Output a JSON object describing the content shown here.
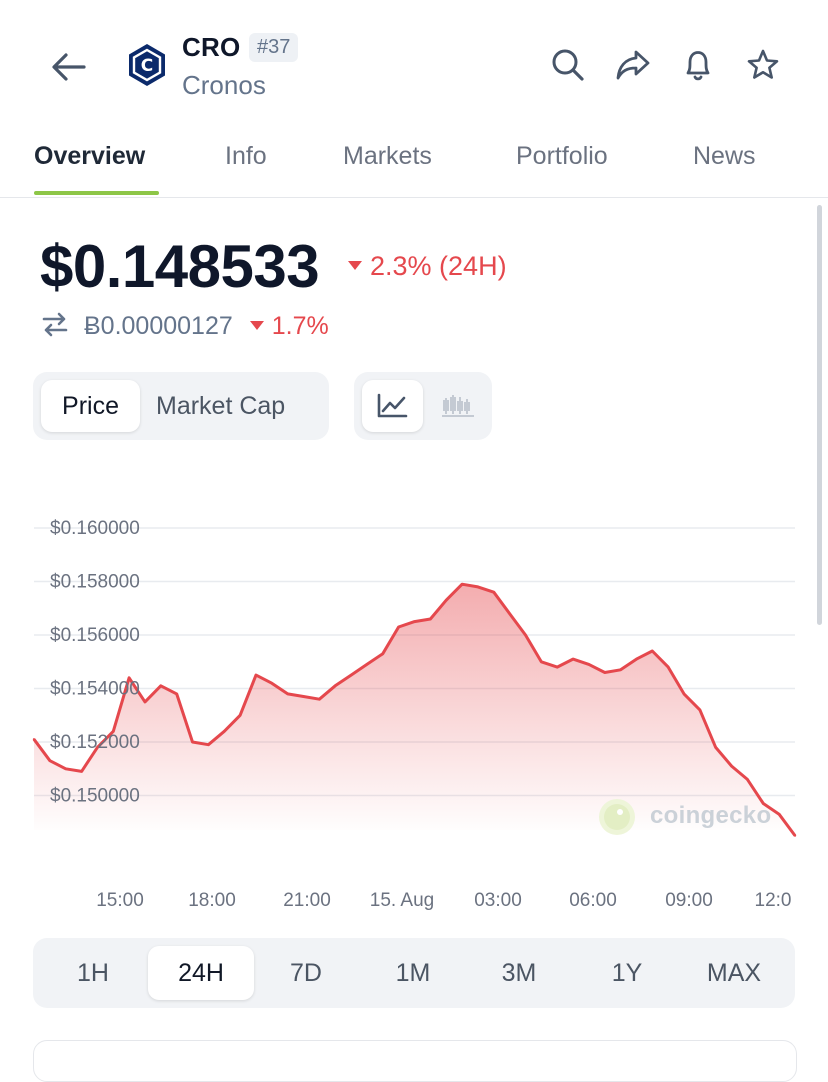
{
  "header": {
    "symbol": "CRO",
    "rank": "#37",
    "name": "Cronos",
    "logo_letter": "C"
  },
  "tabs": [
    {
      "label": "Overview",
      "active": true
    },
    {
      "label": "Info"
    },
    {
      "label": "Markets"
    },
    {
      "label": "Portfolio"
    },
    {
      "label": "News"
    }
  ],
  "price": {
    "value": "$0.148533",
    "change_24h": "2.3% (24H)",
    "btc_value": "Ƀ0.00000127",
    "btc_change": "1.7%",
    "change_color": "#e5484d"
  },
  "chart_toggle": {
    "price_label": "Price",
    "marketcap_label": "Market Cap"
  },
  "chart_data": {
    "type": "area",
    "y_ticks": [
      "$0.160000",
      "$0.158000",
      "$0.156000",
      "$0.154000",
      "$0.152000",
      "$0.150000"
    ],
    "x_ticks": [
      "15:00",
      "18:00",
      "21:00",
      "15. Aug",
      "03:00",
      "06:00",
      "09:00",
      "12:0"
    ],
    "x": [
      "12:15",
      "12:45",
      "13:15",
      "13:45",
      "14:15",
      "14:45",
      "15:15",
      "15:45",
      "16:15",
      "16:45",
      "17:15",
      "17:45",
      "18:15",
      "18:45",
      "19:15",
      "19:45",
      "20:15",
      "20:45",
      "21:15",
      "21:45",
      "22:15",
      "22:45",
      "23:15",
      "23:45",
      "00:15",
      "00:45",
      "01:15",
      "01:45",
      "02:15",
      "02:45",
      "03:15",
      "03:45",
      "04:15",
      "04:45",
      "05:15",
      "05:45",
      "06:15",
      "06:45",
      "07:15",
      "07:45",
      "08:15",
      "08:45",
      "09:15",
      "09:45",
      "10:15",
      "10:45",
      "11:15",
      "11:45",
      "12:15"
    ],
    "values": [
      0.1521,
      0.1513,
      0.151,
      0.1509,
      0.1518,
      0.1524,
      0.1544,
      0.1535,
      0.1541,
      0.1538,
      0.152,
      0.1519,
      0.1524,
      0.153,
      0.1545,
      0.1542,
      0.1538,
      0.1537,
      0.1536,
      0.1541,
      0.1545,
      0.1549,
      0.1553,
      0.1563,
      0.1565,
      0.1566,
      0.1573,
      0.1579,
      0.1578,
      0.1576,
      0.1568,
      0.156,
      0.155,
      0.1548,
      0.1551,
      0.1549,
      0.1546,
      0.1547,
      0.1551,
      0.1554,
      0.1548,
      0.1538,
      0.1532,
      0.1518,
      0.1511,
      0.1506,
      0.1497,
      0.1493,
      0.1485
    ],
    "ylim": [
      0.1485,
      0.1605
    ],
    "line_color": "#e5484d",
    "grid": true,
    "watermark": "coingecko"
  },
  "ranges": [
    {
      "label": "1H"
    },
    {
      "label": "24H",
      "active": true
    },
    {
      "label": "7D"
    },
    {
      "label": "1M"
    },
    {
      "label": "3M"
    },
    {
      "label": "1Y"
    },
    {
      "label": "MAX"
    }
  ]
}
